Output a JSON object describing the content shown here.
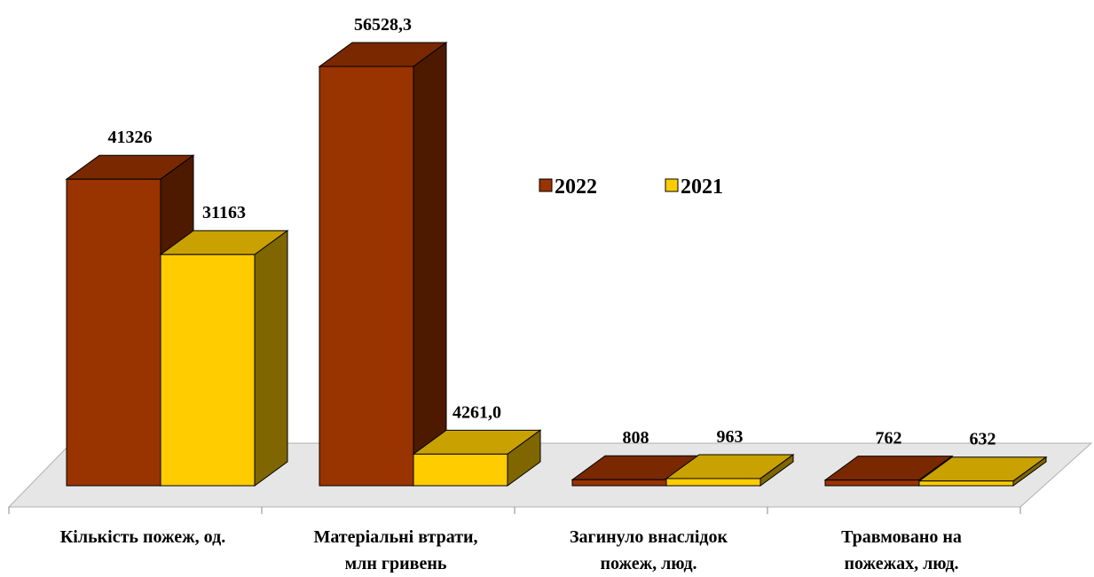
{
  "chart_data": {
    "type": "bar3d",
    "categories": [
      [
        "Кількість пожеж, од."
      ],
      [
        "Матеріальні втрати,",
        "млн гривень"
      ],
      [
        "Загинуло внаслідок",
        "пожеж, люд."
      ],
      [
        "Травмовано на",
        "пожежах, люд."
      ]
    ],
    "series": [
      {
        "name": "2022",
        "color": "#993300",
        "values": [
          41326,
          56528.3,
          808,
          762
        ],
        "value_labels": [
          "41326",
          "56528,3",
          "808",
          "762"
        ]
      },
      {
        "name": "2021",
        "color": "#ffcc00",
        "values": [
          31163,
          4261.0,
          963,
          632
        ],
        "value_labels": [
          "31163",
          "4261,0",
          "963",
          "632"
        ]
      }
    ]
  }
}
